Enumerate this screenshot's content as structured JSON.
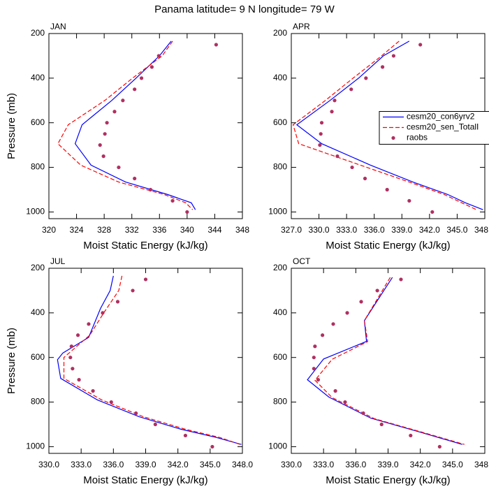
{
  "title": "Panama  latitude= 9 N longitude= 79 W",
  "chart_data": [
    {
      "type": "line",
      "title": "JAN",
      "xlabel": "Moist Static Energy (kJ/kg)",
      "ylabel": "Pressure (mb)",
      "xlim": [
        320,
        348
      ],
      "xticks": [
        320,
        324,
        328,
        332,
        336,
        340,
        344,
        348
      ],
      "ylim": [
        1030,
        200
      ],
      "yticks": [
        200,
        400,
        600,
        800,
        1000
      ],
      "series": [
        {
          "name": "cesm20_con6yrv2",
          "color": "#0000ff",
          "style": "solid",
          "x": [
            337.7,
            336.0,
            332.6,
            329.1,
            324.8,
            323.8,
            326.1,
            331.1,
            337.2,
            340.6,
            341.2
          ],
          "y": [
            234,
            300,
            400,
            500,
            609,
            694,
            790,
            866,
            922,
            959,
            990
          ]
        },
        {
          "name": "cesm20_sen_TotalI",
          "color": "#ff0000",
          "style": "dashed",
          "x": [
            337.9,
            336.4,
            332.1,
            328.1,
            322.8,
            321.3,
            324.6,
            330.1,
            336.7,
            339.8,
            340.8
          ],
          "y": [
            234,
            300,
            400,
            500,
            609,
            694,
            790,
            866,
            922,
            959,
            990
          ]
        },
        {
          "name": "raobs",
          "color": "#b03060",
          "style": "markers",
          "x": [
            344.2,
            335.9,
            334.9,
            333.4,
            332.4,
            330.7,
            329.5,
            328.4,
            328.1,
            327.4,
            327.9,
            330.1,
            332.4,
            334.7,
            337.9,
            340.0
          ],
          "y": [
            250,
            300,
            350,
            400,
            450,
            500,
            550,
            600,
            650,
            700,
            750,
            800,
            850,
            900,
            950,
            1000
          ]
        }
      ]
    },
    {
      "type": "line",
      "title": "APR",
      "xlabel": "Moist Static Energy (kJ/kg)",
      "xlim": [
        327,
        348
      ],
      "xticks": [
        {
          "value": 327,
          "label": "327.0"
        },
        {
          "value": 330,
          "label": "330.0"
        },
        {
          "value": 333,
          "label": "333.0"
        },
        {
          "value": 336,
          "label": "336.0"
        },
        {
          "value": 339,
          "label": "339.0"
        },
        {
          "value": 342,
          "label": "342.0"
        },
        {
          "value": 345,
          "label": "345.0"
        },
        {
          "value": 348,
          "label": "348.0"
        }
      ],
      "ylim": [
        1030,
        200
      ],
      "yticks": [
        200,
        400,
        600,
        800,
        1000
      ],
      "legend": "center-right",
      "series": [
        {
          "name": "cesm20_con6yrv2",
          "color": "#0000ff",
          "style": "solid",
          "x": [
            339.8,
            337.0,
            334.3,
            331.2,
            327.6,
            330.3,
            335.6,
            340.2,
            344.0,
            345.9,
            347.8
          ],
          "y": [
            234,
            300,
            400,
            500,
            609,
            694,
            790,
            866,
            922,
            959,
            990
          ]
        },
        {
          "name": "cesm20_sen_TotalI",
          "color": "#ff0000",
          "style": "dashed",
          "x": [
            338.7,
            336.8,
            333.7,
            330.7,
            327.2,
            327.8,
            334.5,
            339.8,
            343.6,
            345.5,
            347.1
          ],
          "y": [
            234,
            300,
            400,
            500,
            609,
            694,
            790,
            866,
            922,
            959,
            990
          ]
        },
        {
          "name": "raobs",
          "color": "#b03060",
          "style": "markers",
          "x": [
            341.0,
            338.1,
            336.9,
            335.1,
            333.5,
            331.7,
            331.4,
            330.3,
            330.2,
            330.1,
            332.0,
            333.6,
            335.0,
            337.4,
            339.8,
            342.3
          ],
          "y": [
            250,
            300,
            350,
            400,
            450,
            500,
            550,
            600,
            650,
            700,
            750,
            800,
            850,
            900,
            950,
            1000
          ]
        }
      ]
    },
    {
      "type": "line",
      "title": "JUL",
      "xlabel": "Moist Static Energy (kJ/kg)",
      "ylabel": "Pressure (mb)",
      "xlim": [
        330,
        348
      ],
      "xticks": [
        {
          "value": 330,
          "label": "330.0"
        },
        {
          "value": 333,
          "label": "333.0"
        },
        {
          "value": 336,
          "label": "336.0"
        },
        {
          "value": 339,
          "label": "339.0"
        },
        {
          "value": 342,
          "label": "342.0"
        },
        {
          "value": 345,
          "label": "345.0"
        },
        {
          "value": 348,
          "label": "348.0"
        }
      ],
      "ylim": [
        1030,
        200
      ],
      "yticks": [
        200,
        400,
        600,
        800,
        1000
      ],
      "series": [
        {
          "name": "cesm20_con6yrv2",
          "color": "#0000ff",
          "style": "solid",
          "x": [
            336.0,
            335.7,
            334.8,
            333.7,
            331.3,
            330.8,
            331.1,
            334.5,
            338.4,
            342.3,
            345.6,
            347.9
          ],
          "y": [
            234,
            300,
            380,
            510,
            580,
            610,
            694,
            790,
            866,
            922,
            959,
            990
          ]
        },
        {
          "name": "cesm20_sen_TotalI",
          "color": "#ff0000",
          "style": "dashed",
          "x": [
            336.8,
            336.5,
            335.1,
            333.8,
            331.4,
            331.4,
            334.9,
            338.8,
            342.7,
            345.9,
            347.8
          ],
          "y": [
            234,
            300,
            400,
            500,
            600,
            694,
            790,
            866,
            922,
            959,
            990
          ]
        },
        {
          "name": "raobs",
          "color": "#b03060",
          "style": "markers",
          "x": [
            339.0,
            337.8,
            336.4,
            335.0,
            333.7,
            332.7,
            332.1,
            332.0,
            332.2,
            332.8,
            334.1,
            335.8,
            338.1,
            339.9,
            342.7,
            345.2
          ],
          "y": [
            250,
            300,
            350,
            400,
            450,
            500,
            550,
            600,
            650,
            700,
            750,
            800,
            850,
            900,
            950,
            1000
          ]
        }
      ]
    },
    {
      "type": "line",
      "title": "OCT",
      "xlabel": "Moist Static Energy (kJ/kg)",
      "xlim": [
        330,
        348
      ],
      "xticks": [
        {
          "value": 330,
          "label": "330.0"
        },
        {
          "value": 333,
          "label": "333.0"
        },
        {
          "value": 336,
          "label": "336.0"
        },
        {
          "value": 339,
          "label": "339.0"
        },
        {
          "value": 342,
          "label": "342.0"
        },
        {
          "value": 345,
          "label": "345.0"
        },
        {
          "value": 348,
          "label": "348.0"
        }
      ],
      "ylim": [
        1030,
        200
      ],
      "yticks": [
        200,
        400,
        600,
        800,
        1000
      ],
      "series": [
        {
          "name": "cesm20_con6yrv2",
          "color": "#0000ff",
          "style": "solid",
          "x": [
            339.4,
            336.8,
            337.0,
            333.0,
            331.5,
            333.5,
            337.4,
            342.0,
            345.9
          ],
          "y": [
            241,
            435,
            528,
            607,
            700,
            778,
            872,
            935,
            990
          ]
        },
        {
          "name": "cesm20_sen_TotalI",
          "color": "#ff0000",
          "style": "dashed",
          "x": [
            339.2,
            336.8,
            337.1,
            333.8,
            332.2,
            333.8,
            337.7,
            342.3,
            346.1
          ],
          "y": [
            241,
            435,
            529,
            608,
            702,
            780,
            874,
            937,
            990
          ]
        },
        {
          "name": "raobs",
          "color": "#b03060",
          "style": "markers",
          "x": [
            340.2,
            338.0,
            336.5,
            335.2,
            333.9,
            332.9,
            332.2,
            332.1,
            332.1,
            332.5,
            334.1,
            335.0,
            336.7,
            338.4,
            341.1,
            343.8
          ],
          "y": [
            250,
            300,
            350,
            400,
            450,
            500,
            550,
            600,
            650,
            700,
            750,
            800,
            850,
            900,
            950,
            1000
          ]
        }
      ]
    }
  ]
}
